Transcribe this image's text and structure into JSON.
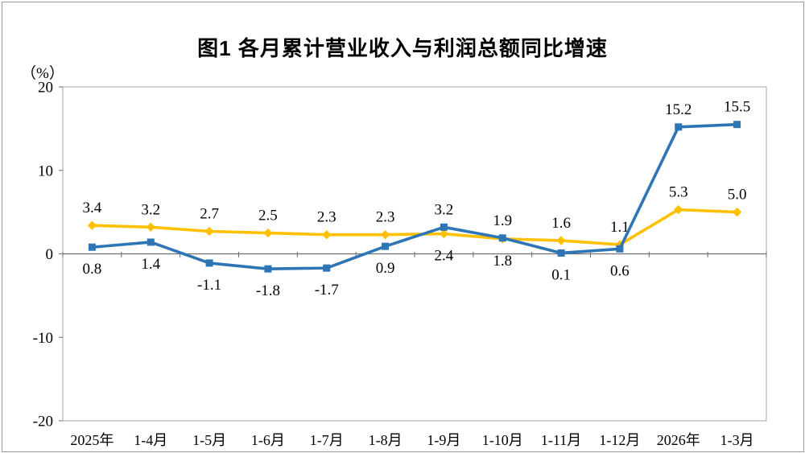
{
  "title": "图1  各月累计营业收入与利润总额同比增速",
  "unit_label": "（%）",
  "colors": {
    "frame_border": "#9b9b9b",
    "plot_border": "#a6a6a6",
    "zero_axis": "#6e6e6e",
    "tick": "#6e6e6e",
    "text": "#000000",
    "series_yellow": "#FFC000",
    "series_blue": "#2E75B6"
  },
  "chart_data": {
    "type": "line",
    "title": "图1  各月累计营业收入与利润总额同比增速",
    "ylabel": "（%）",
    "xlabel": "",
    "ylim": [
      -20,
      20
    ],
    "yticks": [
      20,
      10,
      0,
      -10,
      -20
    ],
    "grid": false,
    "legend_position": "none",
    "categories": [
      "2025年",
      "1-4月",
      "1-5月",
      "1-6月",
      "1-7月",
      "1-8月",
      "1-9月",
      "1-10月",
      "1-11月",
      "1-12月",
      "2026年",
      "1-3月"
    ],
    "series": [
      {
        "name": "yellow-series",
        "color": "#FFC000",
        "marker": "diamond",
        "values": [
          3.4,
          3.2,
          2.7,
          2.5,
          2.3,
          2.3,
          2.4,
          1.8,
          1.6,
          1.1,
          5.3,
          5.0
        ],
        "label_side": [
          "above",
          "above",
          "above",
          "above",
          "above",
          "above",
          "below",
          "below",
          "above",
          "above",
          "above",
          "above"
        ]
      },
      {
        "name": "blue-series",
        "color": "#2E75B6",
        "marker": "square",
        "values": [
          0.8,
          1.4,
          -1.1,
          -1.8,
          -1.7,
          0.9,
          3.2,
          1.9,
          0.1,
          0.6,
          15.2,
          15.5
        ],
        "label_side": [
          "below",
          "below",
          "below",
          "below",
          "below",
          "below",
          "above",
          "above",
          "below",
          "below",
          "above",
          "above"
        ]
      }
    ]
  }
}
